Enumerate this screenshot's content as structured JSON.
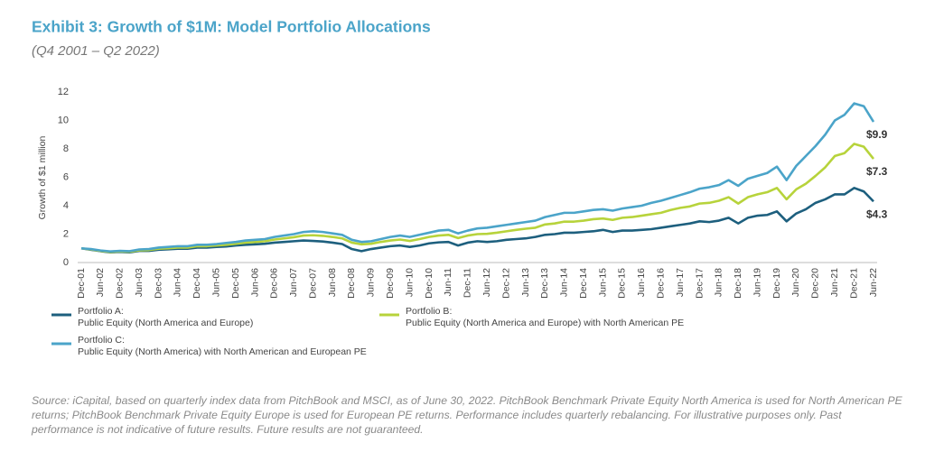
{
  "chart_data": {
    "type": "line",
    "title": "Exhibit 3: Growth of $1M: Model Portfolio Allocations",
    "subtitle": "(Q4 2001 – Q2 2022)",
    "y_label": "Growth of $1 million",
    "ylim": [
      0,
      12
    ],
    "yticks": [
      0,
      2,
      4,
      6,
      8,
      10,
      12
    ],
    "grid": false,
    "categories": [
      "Dec-01",
      null,
      "Jun-02",
      null,
      "Dec-02",
      null,
      "Jun-03",
      null,
      "Dec-03",
      null,
      "Jun-04",
      null,
      "Dec-04",
      null,
      "Jun-05",
      null,
      "Dec-05",
      null,
      "Jun-06",
      null,
      "Dec-06",
      null,
      "Jun-07",
      null,
      "Dec-07",
      null,
      "Jun-08",
      null,
      "Dec-08",
      null,
      "Jun-09",
      null,
      "Dec-09",
      null,
      "Jun-10",
      null,
      "Dec-10",
      null,
      "Jun-11",
      null,
      "Dec-11",
      null,
      "Jun-12",
      null,
      "Dec-12",
      null,
      "Jun-13",
      null,
      "Dec-13",
      null,
      "Jun-14",
      null,
      "Dec-14",
      null,
      "Jun-15",
      null,
      "Dec-15",
      null,
      "Jun-16",
      null,
      "Dec-16",
      null,
      "Jun-17",
      null,
      "Dec-17",
      null,
      "Jun-18",
      null,
      "Dec-18",
      null,
      "Jun-19",
      null,
      "Dec-19",
      null,
      "Jun-20",
      null,
      "Dec-20",
      null,
      "Jun-21",
      null,
      "Dec-21",
      null,
      "Jun-22"
    ],
    "series": [
      {
        "name": "Portfolio A:",
        "description": "Public Equity (North America and Europe)",
        "color": "#1d5f7e",
        "end_label": "$4.3",
        "values": [
          1.0,
          0.9,
          0.8,
          0.72,
          0.75,
          0.72,
          0.82,
          0.82,
          0.9,
          0.93,
          0.97,
          0.97,
          1.05,
          1.05,
          1.1,
          1.13,
          1.2,
          1.25,
          1.28,
          1.32,
          1.4,
          1.45,
          1.5,
          1.55,
          1.52,
          1.48,
          1.4,
          1.3,
          0.95,
          0.8,
          0.95,
          1.05,
          1.15,
          1.2,
          1.1,
          1.2,
          1.35,
          1.42,
          1.45,
          1.2,
          1.4,
          1.5,
          1.45,
          1.5,
          1.6,
          1.65,
          1.7,
          1.8,
          1.95,
          2.0,
          2.1,
          2.1,
          2.15,
          2.2,
          2.3,
          2.15,
          2.25,
          2.25,
          2.3,
          2.35,
          2.45,
          2.55,
          2.65,
          2.75,
          2.9,
          2.85,
          2.95,
          3.15,
          2.75,
          3.15,
          3.3,
          3.35,
          3.6,
          2.9,
          3.45,
          3.75,
          4.2,
          4.45,
          4.8,
          4.8,
          5.25,
          5.0,
          4.3
        ]
      },
      {
        "name": "Portfolio B:",
        "description": "Public Equity (North America and Europe) with North American PE",
        "color": "#b7d33b",
        "end_label": "$7.3",
        "values": [
          1.0,
          0.92,
          0.82,
          0.74,
          0.78,
          0.76,
          0.86,
          0.88,
          0.97,
          1.0,
          1.05,
          1.05,
          1.15,
          1.15,
          1.2,
          1.25,
          1.32,
          1.4,
          1.45,
          1.5,
          1.62,
          1.7,
          1.78,
          1.9,
          1.92,
          1.88,
          1.8,
          1.7,
          1.4,
          1.28,
          1.32,
          1.45,
          1.55,
          1.62,
          1.52,
          1.65,
          1.8,
          1.9,
          1.95,
          1.72,
          1.9,
          2.0,
          2.02,
          2.1,
          2.2,
          2.3,
          2.38,
          2.45,
          2.68,
          2.75,
          2.88,
          2.88,
          2.95,
          3.05,
          3.1,
          3.0,
          3.15,
          3.2,
          3.3,
          3.4,
          3.5,
          3.7,
          3.85,
          3.95,
          4.15,
          4.2,
          4.35,
          4.6,
          4.15,
          4.6,
          4.8,
          4.95,
          5.25,
          4.45,
          5.15,
          5.55,
          6.1,
          6.7,
          7.5,
          7.7,
          8.35,
          8.15,
          7.3
        ]
      },
      {
        "name": "Portfolio C:",
        "description": "Public Equity (North America) with North American and European PE",
        "color": "#4ba4c9",
        "end_label": "$9.9",
        "values": [
          1.0,
          0.95,
          0.85,
          0.78,
          0.82,
          0.8,
          0.92,
          0.95,
          1.05,
          1.1,
          1.15,
          1.15,
          1.25,
          1.25,
          1.3,
          1.38,
          1.45,
          1.55,
          1.6,
          1.65,
          1.8,
          1.9,
          2.0,
          2.15,
          2.2,
          2.15,
          2.05,
          1.95,
          1.6,
          1.45,
          1.5,
          1.65,
          1.8,
          1.9,
          1.8,
          1.95,
          2.1,
          2.25,
          2.3,
          2.05,
          2.25,
          2.4,
          2.45,
          2.55,
          2.65,
          2.75,
          2.85,
          2.95,
          3.2,
          3.35,
          3.5,
          3.5,
          3.6,
          3.7,
          3.75,
          3.65,
          3.8,
          3.9,
          4.0,
          4.2,
          4.35,
          4.55,
          4.75,
          4.95,
          5.2,
          5.3,
          5.45,
          5.8,
          5.4,
          5.9,
          6.1,
          6.3,
          6.75,
          5.8,
          6.8,
          7.5,
          8.2,
          9.0,
          10.0,
          10.4,
          11.2,
          11.0,
          9.9
        ]
      }
    ],
    "source": "Source: iCapital, based on quarterly index data from PitchBook and MSCI, as of June 30, 2022. PitchBook Benchmark Private Equity North America is used for North American PE returns; PitchBook Benchmark Private Equity Europe is used for European PE returns. Performance includes quarterly rebalancing. For illustrative purposes only. Past performance is not indicative of future results. Future results are not guaranteed."
  }
}
